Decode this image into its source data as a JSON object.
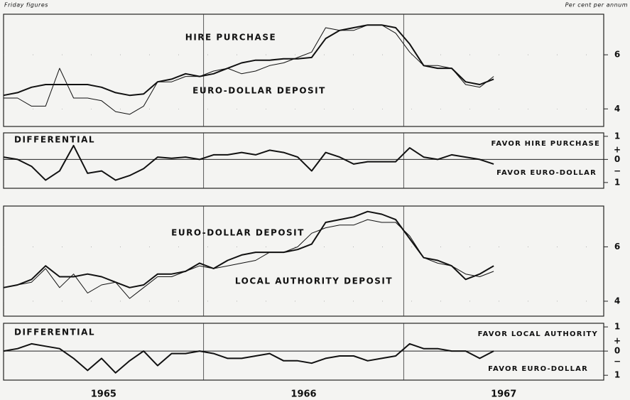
{
  "header": {
    "left": "Friday figures",
    "right": "Per cent per annum"
  },
  "chart_data": [
    {
      "type": "line",
      "x": [
        1965,
        1965.07,
        1965.14,
        1965.21,
        1965.28,
        1965.35,
        1965.42,
        1965.49,
        1965.56,
        1965.63,
        1965.7,
        1965.77,
        1965.84,
        1965.91,
        1965.98,
        1966.05,
        1966.12,
        1966.19,
        1966.26,
        1966.33,
        1966.4,
        1966.47,
        1966.54,
        1966.61,
        1966.68,
        1966.75,
        1966.82,
        1966.89,
        1966.96,
        1967.03,
        1967.1,
        1967.17,
        1967.24,
        1967.31,
        1967.38,
        1967.45
      ],
      "series": [
        {
          "name": "HIRE PURCHASE",
          "color": "#111111",
          "line_width": 2,
          "values": [
            4.5,
            4.6,
            4.8,
            4.9,
            4.9,
            4.9,
            4.9,
            4.8,
            4.6,
            4.5,
            4.55,
            5.0,
            5.1,
            5.3,
            5.2,
            5.3,
            5.5,
            5.7,
            5.8,
            5.8,
            5.85,
            5.85,
            5.9,
            6.6,
            6.9,
            7.0,
            7.1,
            7.1,
            7.0,
            6.4,
            5.6,
            5.5,
            5.5,
            5.0,
            4.9,
            5.1
          ]
        },
        {
          "name": "EURO-DOLLAR DEPOSIT",
          "color": "#111111",
          "line_width": 1,
          "values": [
            4.4,
            4.4,
            4.1,
            4.1,
            5.5,
            4.4,
            4.4,
            4.3,
            3.9,
            3.8,
            4.1,
            5.0,
            5.0,
            5.2,
            5.2,
            5.4,
            5.5,
            5.3,
            5.4,
            5.6,
            5.7,
            5.9,
            6.1,
            7.0,
            6.9,
            6.9,
            7.1,
            7.1,
            6.8,
            6.1,
            5.6,
            5.6,
            5.5,
            4.9,
            4.8,
            5.2
          ]
        }
      ],
      "xlim": [
        1965,
        1968
      ],
      "vlines": [
        1966,
        1967
      ],
      "ylim": [
        3.35,
        7.5
      ],
      "yticks": [
        4,
        6
      ],
      "grid": true
    },
    {
      "type": "line",
      "title": "DIFFERENTIAL",
      "x": [
        1965,
        1965.07,
        1965.14,
        1965.21,
        1965.28,
        1965.35,
        1965.42,
        1965.49,
        1965.56,
        1965.63,
        1965.7,
        1965.77,
        1965.84,
        1965.91,
        1965.98,
        1966.05,
        1966.12,
        1966.19,
        1966.26,
        1966.33,
        1966.4,
        1966.47,
        1966.54,
        1966.61,
        1966.68,
        1966.75,
        1966.82,
        1966.89,
        1966.96,
        1967.03,
        1967.1,
        1967.17,
        1967.24,
        1967.31,
        1967.38,
        1967.45
      ],
      "series": [
        {
          "color": "#111111",
          "line_width": 2,
          "values": [
            0.1,
            0,
            -0.3,
            -0.9,
            -0.5,
            0.6,
            -0.6,
            -0.5,
            -0.9,
            -0.7,
            -0.4,
            0.1,
            0.05,
            0.1,
            0,
            0.2,
            0.2,
            0.3,
            0.2,
            0.4,
            0.3,
            0.1,
            -0.5,
            0.3,
            0.1,
            -0.2,
            -0.1,
            -0.1,
            -0.1,
            0.5,
            0.1,
            0,
            0.2,
            0.1,
            0,
            -0.2
          ]
        }
      ],
      "annotations": [
        "FAVOR HIRE PURCHASE",
        "FAVOR EURO-DOLLAR"
      ],
      "signs": [
        "+",
        "−"
      ],
      "xlim": [
        1965,
        1968
      ],
      "vlines": [
        1966,
        1967
      ],
      "ylim": [
        -1.25,
        1.15
      ],
      "yticks": [
        1,
        0,
        {
          "value": -1,
          "label": "1"
        }
      ],
      "zero_line": true
    },
    {
      "type": "line",
      "x": [
        1965,
        1965.07,
        1965.14,
        1965.21,
        1965.28,
        1965.35,
        1965.42,
        1965.49,
        1965.56,
        1965.63,
        1965.7,
        1965.77,
        1965.84,
        1965.91,
        1965.98,
        1966.05,
        1966.12,
        1966.19,
        1966.26,
        1966.33,
        1966.4,
        1966.47,
        1966.54,
        1966.61,
        1966.68,
        1966.75,
        1966.82,
        1966.89,
        1966.96,
        1967.03,
        1967.1,
        1967.17,
        1967.24,
        1967.31,
        1967.38,
        1967.45
      ],
      "series": [
        {
          "name": "EURO-DOLLAR DEPOSIT",
          "color": "#111111",
          "line_width": 2,
          "values": [
            4.5,
            4.6,
            4.8,
            5.3,
            4.9,
            4.9,
            5.0,
            4.9,
            4.7,
            4.5,
            4.6,
            5.0,
            5.0,
            5.1,
            5.4,
            5.2,
            5.5,
            5.7,
            5.8,
            5.8,
            5.8,
            5.9,
            6.1,
            6.9,
            7.0,
            7.1,
            7.3,
            7.2,
            7.0,
            6.3,
            5.6,
            5.5,
            5.3,
            4.8,
            5.0,
            5.3
          ]
        },
        {
          "name": "LOCAL AUTHORITY DEPOSIT",
          "color": "#111111",
          "line_width": 1,
          "values": [
            4.5,
            4.6,
            4.7,
            5.2,
            4.5,
            5.0,
            4.3,
            4.6,
            4.7,
            4.1,
            4.5,
            4.9,
            4.9,
            5.1,
            5.3,
            5.2,
            5.3,
            5.4,
            5.5,
            5.8,
            5.8,
            6.0,
            6.5,
            6.7,
            6.8,
            6.8,
            7.0,
            6.9,
            6.9,
            6.4,
            5.6,
            5.4,
            5.3,
            5.0,
            4.9,
            5.1
          ]
        }
      ],
      "xlim": [
        1965,
        1968
      ],
      "vlines": [
        1966,
        1967
      ],
      "ylim": [
        3.45,
        7.5
      ],
      "yticks": [
        4,
        6
      ],
      "grid": true
    },
    {
      "type": "line",
      "title": "DIFFERENTIAL",
      "x": [
        1965,
        1965.07,
        1965.14,
        1965.21,
        1965.28,
        1965.35,
        1965.42,
        1965.49,
        1965.56,
        1965.63,
        1965.7,
        1965.77,
        1965.84,
        1965.91,
        1965.98,
        1966.05,
        1966.12,
        1966.19,
        1966.26,
        1966.33,
        1966.4,
        1966.47,
        1966.54,
        1966.61,
        1966.68,
        1966.75,
        1966.82,
        1966.89,
        1966.96,
        1967.03,
        1967.1,
        1967.17,
        1967.24,
        1967.31,
        1967.38,
        1967.45
      ],
      "series": [
        {
          "color": "#111111",
          "line_width": 2,
          "values": [
            0,
            0.1,
            0.3,
            0.2,
            0.1,
            -0.3,
            -0.8,
            -0.3,
            -0.9,
            -0.4,
            0,
            -0.6,
            -0.1,
            -0.1,
            0,
            -0.1,
            -0.3,
            -0.3,
            -0.2,
            -0.1,
            -0.4,
            -0.4,
            -0.5,
            -0.3,
            -0.2,
            -0.2,
            -0.4,
            -0.3,
            -0.2,
            0.3,
            0.1,
            0.1,
            0,
            0,
            -0.3,
            0
          ]
        }
      ],
      "annotations": [
        "FAVOR LOCAL AUTHORITY",
        "FAVOR EURO-DOLLAR"
      ],
      "signs": [
        "+",
        "−"
      ],
      "xlim": [
        1965,
        1968
      ],
      "vlines": [
        1966,
        1967
      ],
      "ylim": [
        -1.2,
        1.15
      ],
      "yticks": [
        1,
        0,
        {
          "value": -1,
          "label": "1"
        }
      ],
      "zero_line": true,
      "xticks": [
        {
          "value": 1965.5,
          "label": "1965"
        },
        {
          "value": 1966.5,
          "label": "1966"
        },
        {
          "value": 1967.5,
          "label": "1967"
        }
      ]
    }
  ]
}
